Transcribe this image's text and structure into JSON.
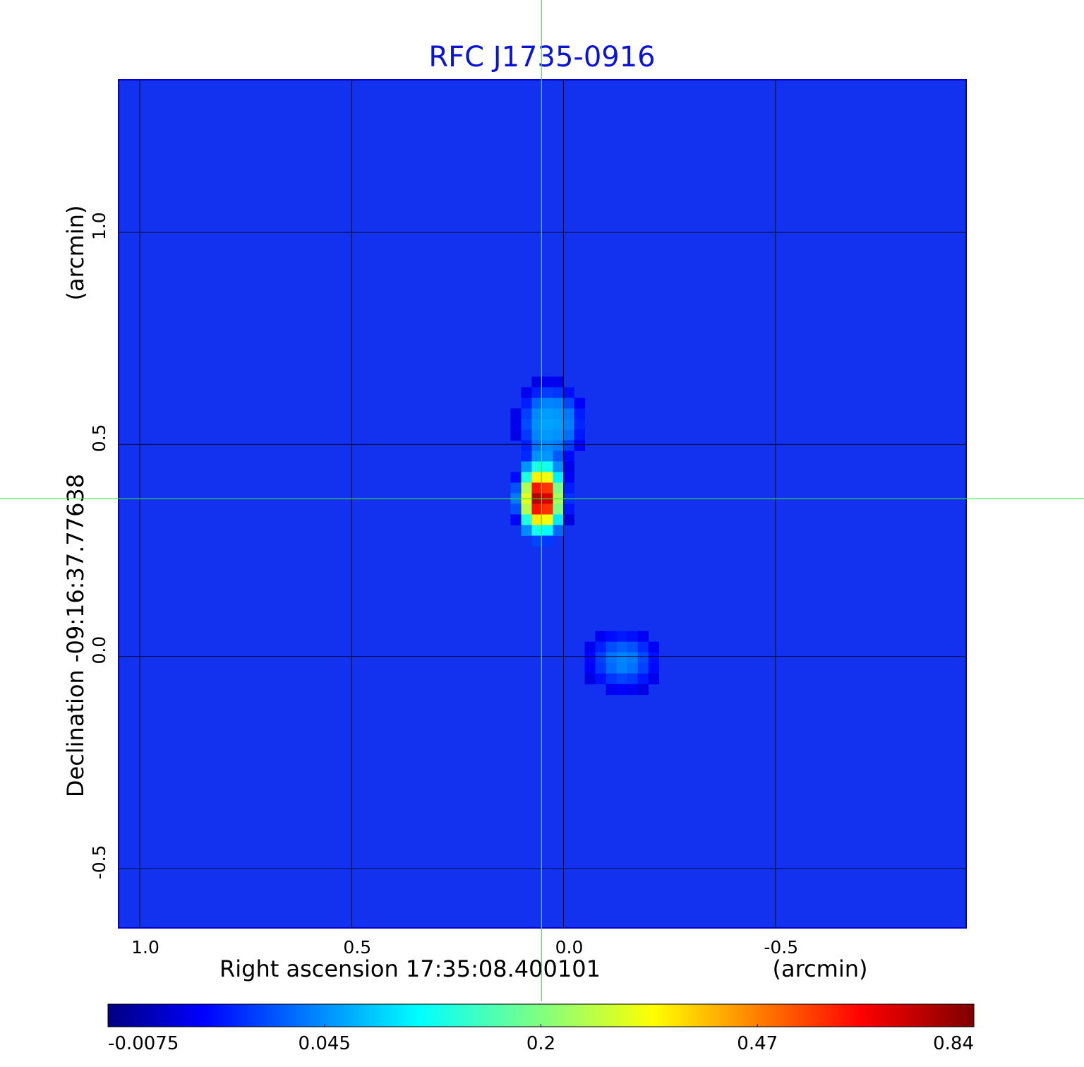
{
  "chart_data": {
    "type": "heatmap",
    "title": "RFC J1735-0916",
    "xlabel": "Right ascension  17:35:08.400101",
    "xunit": "(arcmin)",
    "ylabel": "Declination  -09:16:37.77638",
    "yunit": "(arcmin)",
    "x_ticks": [
      "1.0",
      "0.5",
      "0.0",
      "-0.5"
    ],
    "x_tick_values": [
      1.0,
      0.5,
      0.0,
      -0.5
    ],
    "y_ticks": [
      "1.0",
      "0.5",
      "0.0",
      "-0.5"
    ],
    "y_tick_values": [
      1.0,
      0.5,
      0.0,
      -0.5
    ],
    "xlim": [
      1.05,
      -0.95
    ],
    "ylim": [
      -0.64,
      1.36
    ],
    "grid": true,
    "colormap": "jet",
    "colorbar": {
      "ticks": [
        "-0.0075",
        "0.045",
        "0.2",
        "0.47",
        "0.84"
      ],
      "tick_values": [
        -0.0075,
        0.045,
        0.2,
        0.47,
        0.84
      ]
    },
    "crosshair": {
      "x": 0.052,
      "y": 0.372
    },
    "sources": [
      {
        "x": 0.052,
        "y": 0.372,
        "peak": 0.84,
        "sigma_x": 0.025,
        "sigma_y": 0.04
      },
      {
        "x": 0.03,
        "y": 0.55,
        "peak": 0.07,
        "sigma_x": 0.05,
        "sigma_y": 0.06
      },
      {
        "x": -0.14,
        "y": -0.01,
        "peak": 0.05,
        "sigma_x": 0.06,
        "sigma_y": 0.05
      }
    ],
    "background_level": -0.002,
    "colors": {
      "title": "#0a14d2",
      "crosshair": "#33ee33",
      "background_map": "#1232f0"
    }
  }
}
